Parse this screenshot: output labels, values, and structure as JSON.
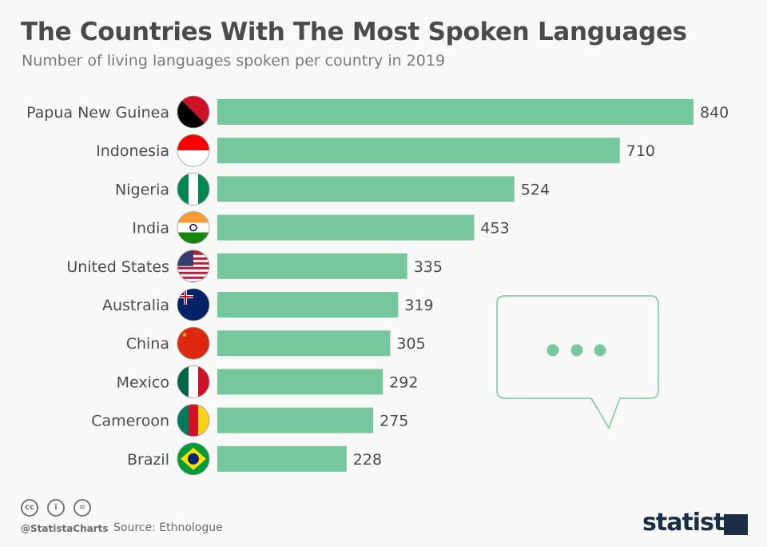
{
  "header": {
    "title": "The Countries With The Most Spoken Languages",
    "subtitle": "Number of living languages spoken per country in 2019"
  },
  "chart_data": {
    "type": "bar",
    "orientation": "horizontal",
    "categories": [
      "Papua New Guinea",
      "Indonesia",
      "Nigeria",
      "India",
      "United States",
      "Australia",
      "China",
      "Mexico",
      "Cameroon",
      "Brazil"
    ],
    "values": [
      840,
      710,
      524,
      453,
      335,
      319,
      305,
      292,
      275,
      228
    ],
    "xlim": [
      0,
      840
    ],
    "grid": false,
    "bar_color": "#76c79b",
    "data_labels": true
  },
  "footer": {
    "handle": "@StatistaCharts",
    "source": "Source: Ethnologue",
    "logo": "statista",
    "license_icons": [
      "cc-icon",
      "by-icon",
      "nd-icon"
    ]
  }
}
